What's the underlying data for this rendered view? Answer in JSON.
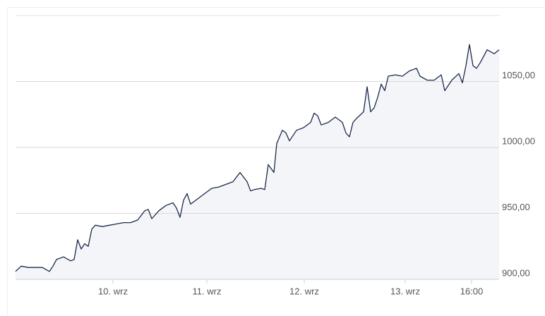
{
  "chart_data": {
    "type": "area",
    "x": [
      0,
      1.6,
      3.6,
      5.6,
      7.6,
      9.6,
      10.6,
      11.6,
      13.6,
      15.6,
      16.6,
      17.6,
      18.6,
      19.6,
      20.6,
      21.6,
      22.6,
      24.6,
      26.6,
      28.6,
      30.6,
      32.6,
      34.6,
      36.6,
      37.6,
      38.6,
      40.6,
      42.6,
      44.6,
      45.6,
      46.6,
      47.6,
      48.6,
      49.6,
      51.6,
      53.6,
      55.6,
      57.6,
      59.6,
      61.6,
      63.6,
      65.6,
      66.6,
      67.6,
      69.6,
      70.6,
      71.6,
      73.2,
      74,
      75.6,
      76.6,
      77.6,
      79.6,
      81.6,
      83.6,
      84.6,
      85.6,
      86.6,
      88.6,
      90.6,
      92.6,
      93.6,
      94.6,
      95.6,
      96.6,
      98.6,
      99.6,
      100.6,
      101.6,
      102.6,
      103.6,
      104.6,
      105.6,
      107.6,
      109.6,
      111.6,
      113.6,
      114.6,
      116.6,
      118.6,
      120.6,
      121.6,
      123.6,
      125.6,
      126.6,
      127.6,
      128.6,
      129.6,
      130.6,
      131.6,
      133.6,
      135.6,
      137
    ],
    "values": [
      906,
      910,
      909,
      909,
      909,
      906,
      910,
      915,
      917,
      914,
      915,
      930,
      923,
      927,
      925,
      938,
      941,
      940,
      941,
      942,
      943,
      943,
      945,
      952,
      953,
      946,
      952,
      956,
      958,
      954,
      947,
      960,
      965,
      957,
      961,
      965,
      969,
      970,
      972,
      974,
      981,
      974,
      967,
      968,
      969,
      968,
      987,
      981,
      1003,
      1013,
      1011,
      1005,
      1013,
      1015,
      1019,
      1026,
      1024,
      1017,
      1019,
      1023,
      1019,
      1011,
      1008,
      1019,
      1022,
      1027,
      1046,
      1027,
      1030,
      1038,
      1048,
      1043,
      1054,
      1055,
      1054,
      1058,
      1060,
      1054,
      1051,
      1051,
      1055,
      1043,
      1051,
      1056,
      1049,
      1062,
      1078,
      1062,
      1060,
      1064,
      1074,
      1071,
      1074
    ],
    "color": "#1b2a4a",
    "fill": "#f3f5f9",
    "xlim": [
      0,
      137
    ],
    "xticks": [
      {
        "value": 27.6,
        "label": "10. wrz"
      },
      {
        "value": 54.2,
        "label": "11. wrz"
      },
      {
        "value": 81.8,
        "label": "12. wrz"
      },
      {
        "value": 110.4,
        "label": "13. wrz"
      },
      {
        "value": 129.2,
        "label": "16:00"
      }
    ],
    "ylim": [
      900,
      1100
    ],
    "yticks": [
      {
        "value": 900,
        "label": "900,00"
      },
      {
        "value": 950,
        "label": "950,00"
      },
      {
        "value": 1000,
        "label": "1000,00"
      },
      {
        "value": 1050,
        "label": "1050,00"
      }
    ],
    "grid": true
  }
}
